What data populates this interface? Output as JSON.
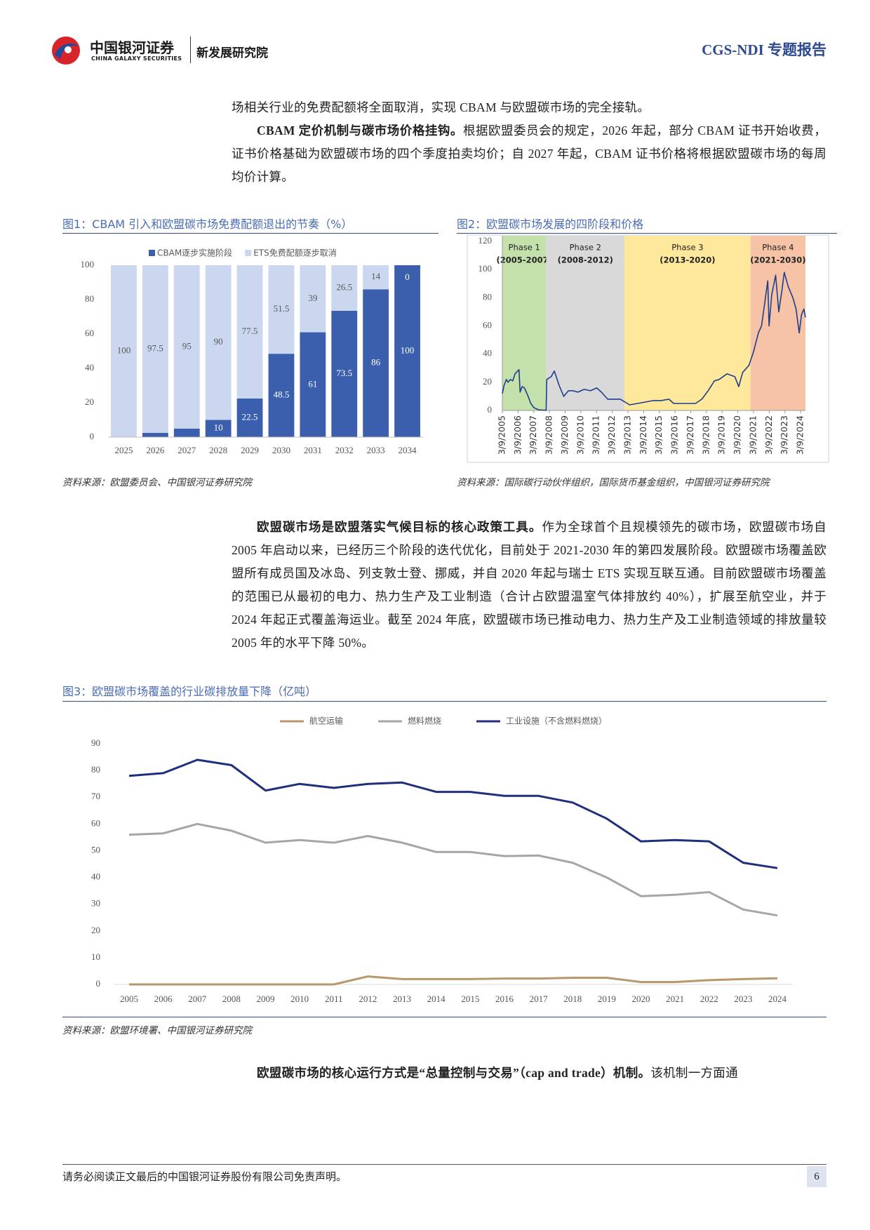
{
  "header": {
    "logo_cn": "中国银河证券",
    "logo_en": "CHINA GALAXY SECURITIES",
    "institute": "新发展研究院",
    "report": "CGS-NDI 专题报告"
  },
  "paragraphs": [
    {
      "text": "场相关行业的免费配额将全面取消，实现 CBAM 与欧盟碳市场的完全接轨。"
    },
    {
      "bold": "CBAM 定价机制与碳市场价格挂钩。",
      "text": "根据欧盟委员会的规定，2026 年起，部分 CBAM 证书开始收费，证书价格基础为欧盟碳市场的四个季度拍卖均价；自 2027 年起，CBAM 证书价格将根据欧盟碳市场的每周均价计算。"
    },
    {
      "bold": "欧盟碳市场是欧盟落实气候目标的核心政策工具。",
      "text": "作为全球首个且规模领先的碳市场，欧盟碳市场自 2005 年启动以来，已经历三个阶段的迭代优化，目前处于 2021-2030 年的第四发展阶段。欧盟碳市场覆盖欧盟所有成员国及冰岛、列支敦士登、挪威，并自 2020 年起与瑞士 ETS 实现互联互通。目前欧盟碳市场覆盖的范围已从最初的电力、热力生产及工业制造（合计占欧盟温室气体排放约 40%），扩展至航空业，并于 2024 年起正式覆盖海运业。截至 2024 年底，欧盟碳市场已推动电力、热力生产及工业制造领域的排放量较 2005 年的水平下降 50%。"
    },
    {
      "bold": "欧盟碳市场的核心运行方式是“总量控制与交易”（cap and trade）机制。",
      "text": "该机制一方面通"
    }
  ],
  "chart_data": [
    {
      "type": "bar",
      "title": "图1：CBAM 引入和欧盟碳市场免费配额退出的节奏（%）",
      "source": "资料来源：欧盟委员会、中国银河证券研究院",
      "categories": [
        "2025",
        "2026",
        "2027",
        "2028",
        "2029",
        "2030",
        "2031",
        "2032",
        "2033",
        "2034"
      ],
      "series": [
        {
          "name": "CBAM逐步实施阶段",
          "color": "#3b5fad",
          "values": [
            0,
            2.5,
            5,
            10,
            22.5,
            48.5,
            61,
            73.5,
            86,
            100
          ]
        },
        {
          "name": "ETS免费配额逐步取消",
          "color": "#cbd7ee",
          "values": [
            100,
            97.5,
            95,
            90,
            77.5,
            51.5,
            39,
            26.5,
            14,
            0
          ]
        }
      ],
      "ylim": [
        0,
        100
      ],
      "yticks": [
        0,
        20,
        40,
        60,
        80,
        100
      ],
      "grid": false,
      "legend": "top"
    },
    {
      "type": "line",
      "title": "图2：欧盟碳市场发展的四阶段和价格",
      "source": "资料来源：国际碳行动伙伴组织，国际货币基金组织，中国银河证券研究院",
      "x": [
        2005.19,
        2005.3,
        2005.45,
        2005.55,
        2005.7,
        2005.85,
        2006.0,
        2006.25,
        2006.32,
        2006.45,
        2006.6,
        2006.8,
        2007.0,
        2007.2,
        2007.5,
        2007.98,
        2008.02,
        2008.3,
        2008.5,
        2008.8,
        2009.1,
        2009.4,
        2009.7,
        2010.0,
        2010.4,
        2010.8,
        2011.2,
        2011.5,
        2011.9,
        2012.3,
        2012.7,
        2013.0,
        2013.3,
        2013.8,
        2014.3,
        2014.8,
        2015.3,
        2015.8,
        2016.1,
        2016.6,
        2017.0,
        2017.5,
        2017.9,
        2018.3,
        2018.7,
        2019.0,
        2019.5,
        2020.0,
        2020.25,
        2020.5,
        2020.9,
        2021.2,
        2021.5,
        2021.7,
        2021.95,
        2022.1,
        2022.18,
        2022.35,
        2022.6,
        2022.8,
        2023.0,
        2023.15,
        2023.4,
        2023.7,
        2023.9,
        2024.1,
        2024.25,
        2024.4,
        2024.5
      ],
      "values": [
        12,
        18,
        22,
        20,
        22,
        21,
        26,
        29,
        13,
        17,
        16,
        11,
        5,
        2,
        0.5,
        0.1,
        22,
        24,
        28,
        18,
        10,
        14,
        14,
        13,
        15,
        14,
        16,
        13,
        8,
        8,
        8,
        6,
        4,
        5,
        6,
        7,
        7,
        8,
        5,
        5,
        5,
        5,
        8,
        14,
        21,
        22,
        26,
        24,
        17,
        27,
        32,
        42,
        55,
        60,
        80,
        92,
        60,
        82,
        96,
        70,
        85,
        98,
        88,
        80,
        72,
        55,
        68,
        72,
        66
      ],
      "color": "#1f3f8a",
      "phases": [
        {
          "name": "Phase 1",
          "period": "(2005-2007)",
          "range": [
            2005.19,
            2007.98
          ],
          "color": "#c4e1ab"
        },
        {
          "name": "Phase 2",
          "period": "(2008-2012)",
          "range": [
            2007.98,
            2012.97
          ],
          "color": "#d9d9d9"
        },
        {
          "name": "Phase 3",
          "period": "(2013-2020)",
          "range": [
            2012.97,
            2021.0
          ],
          "color": "#fde89b"
        },
        {
          "name": "Phase 4",
          "period": "(2021-2030)",
          "range": [
            2021.0,
            2024.5
          ],
          "color": "#f6c3a6"
        }
      ],
      "xlim": [
        2005.19,
        2024.5
      ],
      "xticks": [
        {
          "value": 2005.19,
          "label": "3/9/2005"
        },
        {
          "value": 2006.19,
          "label": "3/9/2006"
        },
        {
          "value": 2007.19,
          "label": "3/9/2007"
        },
        {
          "value": 2008.19,
          "label": "3/9/2008"
        },
        {
          "value": 2009.19,
          "label": "3/9/2009"
        },
        {
          "value": 2010.19,
          "label": "3/9/2010"
        },
        {
          "value": 2011.19,
          "label": "3/9/2011"
        },
        {
          "value": 2012.19,
          "label": "3/9/2012"
        },
        {
          "value": 2013.19,
          "label": "3/9/2013"
        },
        {
          "value": 2014.19,
          "label": "3/9/2014"
        },
        {
          "value": 2015.19,
          "label": "3/9/2015"
        },
        {
          "value": 2016.19,
          "label": "3/9/2016"
        },
        {
          "value": 2017.19,
          "label": "3/9/2017"
        },
        {
          "value": 2018.19,
          "label": "3/9/2018"
        },
        {
          "value": 2019.19,
          "label": "3/9/2019"
        },
        {
          "value": 2020.19,
          "label": "3/9/2020"
        },
        {
          "value": 2021.19,
          "label": "3/9/2021"
        },
        {
          "value": 2022.19,
          "label": "3/9/2022"
        },
        {
          "value": 2023.19,
          "label": "3/9/2023"
        },
        {
          "value": 2024.19,
          "label": "3/9/2024"
        }
      ],
      "ylim": [
        0,
        120
      ],
      "yticks": [
        0,
        20,
        40,
        60,
        80,
        100,
        120
      ],
      "grid": false
    },
    {
      "type": "line",
      "title": "图3：欧盟碳市场覆盖的行业碳排放量下降（亿吨）",
      "source": "资料来源：欧盟环境署、中国银河证券研究院",
      "categories": [
        "2005",
        "2006",
        "2007",
        "2008",
        "2009",
        "2010",
        "2011",
        "2012",
        "2013",
        "2014",
        "2015",
        "2016",
        "2017",
        "2018",
        "2019",
        "2020",
        "2021",
        "2022",
        "2023",
        "2024"
      ],
      "series": [
        {
          "name": "航空运输",
          "color": "#b8976a",
          "values": [
            0,
            0,
            0,
            0,
            0,
            0,
            0,
            3,
            2,
            2,
            2,
            2.2,
            2.2,
            2.5,
            2.5,
            0.9,
            0.9,
            1.6,
            2,
            2.3
          ]
        },
        {
          "name": "燃料燃烧",
          "color": "#a6a6a6",
          "values": [
            56,
            56.5,
            60,
            57.5,
            53,
            54,
            53,
            55.5,
            53,
            49.5,
            49.5,
            48,
            48.2,
            45.5,
            40,
            33,
            33.5,
            34.5,
            28,
            25.8
          ]
        },
        {
          "name": "工业设施（不含燃料燃烧）",
          "color": "#1e2f7d",
          "values": [
            78,
            79,
            84,
            82,
            72.5,
            75,
            73.5,
            75,
            75.5,
            72,
            72,
            70.5,
            70.5,
            68,
            62,
            53.5,
            54,
            53.5,
            45.5,
            43.5
          ]
        }
      ],
      "ylim": [
        0,
        90
      ],
      "yticks": [
        0,
        10,
        20,
        30,
        40,
        50,
        60,
        70,
        80,
        90
      ],
      "grid": false,
      "legend": "top"
    }
  ],
  "footer": {
    "disclaimer": "请务必阅读正文最后的中国银河证券股份有限公司免责声明。",
    "page": 6
  }
}
